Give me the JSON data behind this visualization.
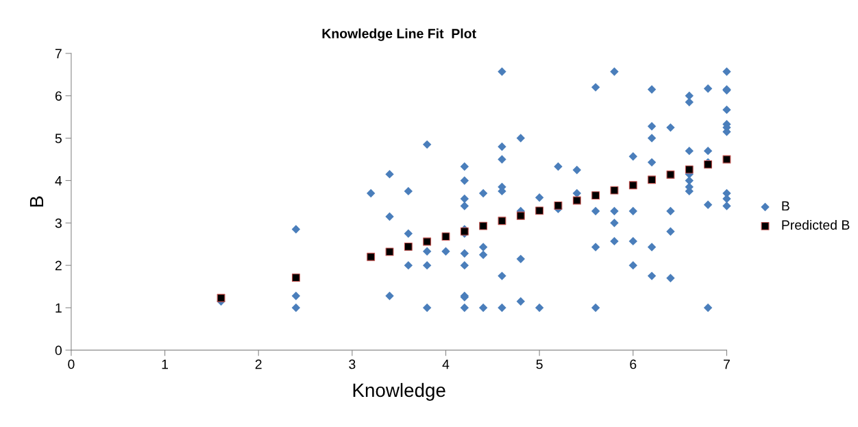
{
  "chart_data": {
    "type": "scatter",
    "title": "Knowledge Line Fit  Plot",
    "xlabel": "Knowledge",
    "ylabel": "B",
    "xlim": [
      0,
      7
    ],
    "ylim": [
      0,
      7
    ],
    "xticks": [
      0,
      1,
      2,
      3,
      4,
      5,
      6,
      7
    ],
    "yticks": [
      0,
      1,
      2,
      3,
      4,
      5,
      6,
      7
    ],
    "grid": false,
    "legend": "right",
    "series": [
      {
        "name": "B",
        "color": "#4a7ebb",
        "marker": "diamond",
        "x": [
          1.6,
          2.4,
          2.4,
          2.4,
          3.2,
          3.4,
          3.4,
          3.4,
          3.6,
          3.6,
          3.6,
          3.8,
          3.8,
          3.8,
          3.8,
          4.0,
          4.2,
          4.2,
          4.2,
          4.2,
          4.2,
          4.2,
          4.2,
          4.2,
          4.2,
          4.2,
          4.2,
          4.4,
          4.4,
          4.4,
          4.4,
          4.6,
          4.6,
          4.6,
          4.6,
          4.6,
          4.6,
          4.6,
          4.8,
          4.8,
          4.8,
          4.8,
          5.0,
          5.0,
          5.2,
          5.2,
          5.4,
          5.4,
          5.6,
          5.6,
          5.6,
          5.6,
          5.8,
          5.8,
          5.8,
          5.8,
          6.0,
          6.0,
          6.0,
          6.0,
          6.2,
          6.2,
          6.2,
          6.2,
          6.2,
          6.2,
          6.4,
          6.4,
          6.4,
          6.4,
          6.6,
          6.6,
          6.6,
          6.6,
          6.6,
          6.6,
          6.6,
          6.8,
          6.8,
          6.8,
          6.8,
          6.8,
          7.0,
          7.0,
          7.0,
          7.0,
          7.0,
          7.0,
          7.0,
          7.0,
          7.0,
          7.0
        ],
        "values": [
          1.15,
          2.85,
          1.28,
          1.0,
          3.7,
          4.15,
          3.15,
          1.28,
          3.75,
          2.75,
          2.0,
          4.85,
          2.33,
          2.0,
          1.0,
          2.33,
          4.33,
          4.0,
          3.57,
          3.4,
          2.85,
          2.75,
          2.28,
          2.0,
          1.28,
          1.25,
          1.0,
          3.7,
          2.43,
          2.25,
          1.0,
          6.57,
          4.8,
          4.5,
          3.85,
          3.75,
          1.75,
          1.0,
          5.0,
          3.28,
          2.15,
          1.15,
          3.6,
          1.0,
          4.33,
          3.33,
          4.25,
          3.7,
          6.2,
          3.28,
          2.43,
          1.0,
          6.57,
          3.28,
          3.0,
          2.57,
          4.57,
          3.28,
          2.57,
          2.0,
          6.15,
          5.28,
          5.0,
          4.43,
          2.43,
          1.75,
          5.25,
          3.28,
          2.8,
          1.7,
          6.0,
          5.85,
          4.7,
          4.15,
          4.0,
          3.85,
          3.75,
          6.17,
          4.7,
          4.43,
          3.43,
          1.0,
          6.57,
          6.15,
          6.13,
          5.67,
          5.33,
          5.25,
          5.15,
          3.7,
          3.57,
          3.4
        ]
      },
      {
        "name": "Predicted B",
        "color": "#000000",
        "marker": "square",
        "x": [
          1.6,
          2.4,
          3.2,
          3.4,
          3.6,
          3.8,
          4.0,
          4.2,
          4.4,
          4.6,
          4.8,
          5.0,
          5.2,
          5.4,
          5.6,
          5.8,
          6.0,
          6.2,
          6.4,
          6.6,
          6.8,
          7.0
        ],
        "values": [
          1.23,
          1.71,
          2.2,
          2.32,
          2.44,
          2.56,
          2.68,
          2.8,
          2.93,
          3.05,
          3.17,
          3.29,
          3.41,
          3.53,
          3.65,
          3.77,
          3.89,
          4.02,
          4.14,
          4.26,
          4.38,
          4.5
        ]
      }
    ]
  }
}
